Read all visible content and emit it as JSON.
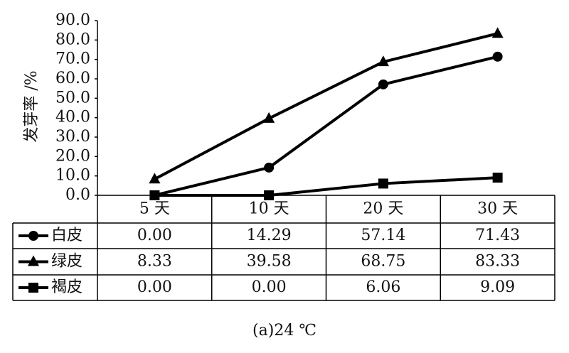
{
  "chart_data": {
    "type": "line",
    "ylabel": "发芽率 /%",
    "caption": "(a)24 ℃",
    "categories": [
      "5 天",
      "10 天",
      "20 天",
      "30 天"
    ],
    "ylim": [
      0,
      90
    ],
    "yticks": [
      {
        "value": 0,
        "label": "0.0"
      },
      {
        "value": 10,
        "label": "10.0"
      },
      {
        "value": 20,
        "label": "20.0"
      },
      {
        "value": 30,
        "label": "30.0"
      },
      {
        "value": 40,
        "label": "40.0"
      },
      {
        "value": 50,
        "label": "50.0"
      },
      {
        "value": 60,
        "label": "60.0"
      },
      {
        "value": 70,
        "label": "70.0"
      },
      {
        "value": 80,
        "label": "80.0"
      },
      {
        "value": 90,
        "label": "90.0"
      }
    ],
    "series": [
      {
        "name": "白皮",
        "color": "#000000",
        "marker": "circle",
        "values": [
          0,
          14.29,
          57.14,
          71.43
        ],
        "value_labels": [
          "0.00",
          "14.29",
          "57.14",
          "71.43"
        ]
      },
      {
        "name": "绿皮",
        "color": "#000000",
        "marker": "triangle",
        "values": [
          8.33,
          39.58,
          68.75,
          83.33
        ],
        "value_labels": [
          "8.33",
          "39.58",
          "68.75",
          "83.33"
        ]
      },
      {
        "name": "褐皮",
        "color": "#000000",
        "marker": "square",
        "values": [
          0,
          0,
          6.06,
          9.09
        ],
        "value_labels": [
          "0.00",
          "0.00",
          "6.06",
          "9.09"
        ]
      }
    ]
  }
}
